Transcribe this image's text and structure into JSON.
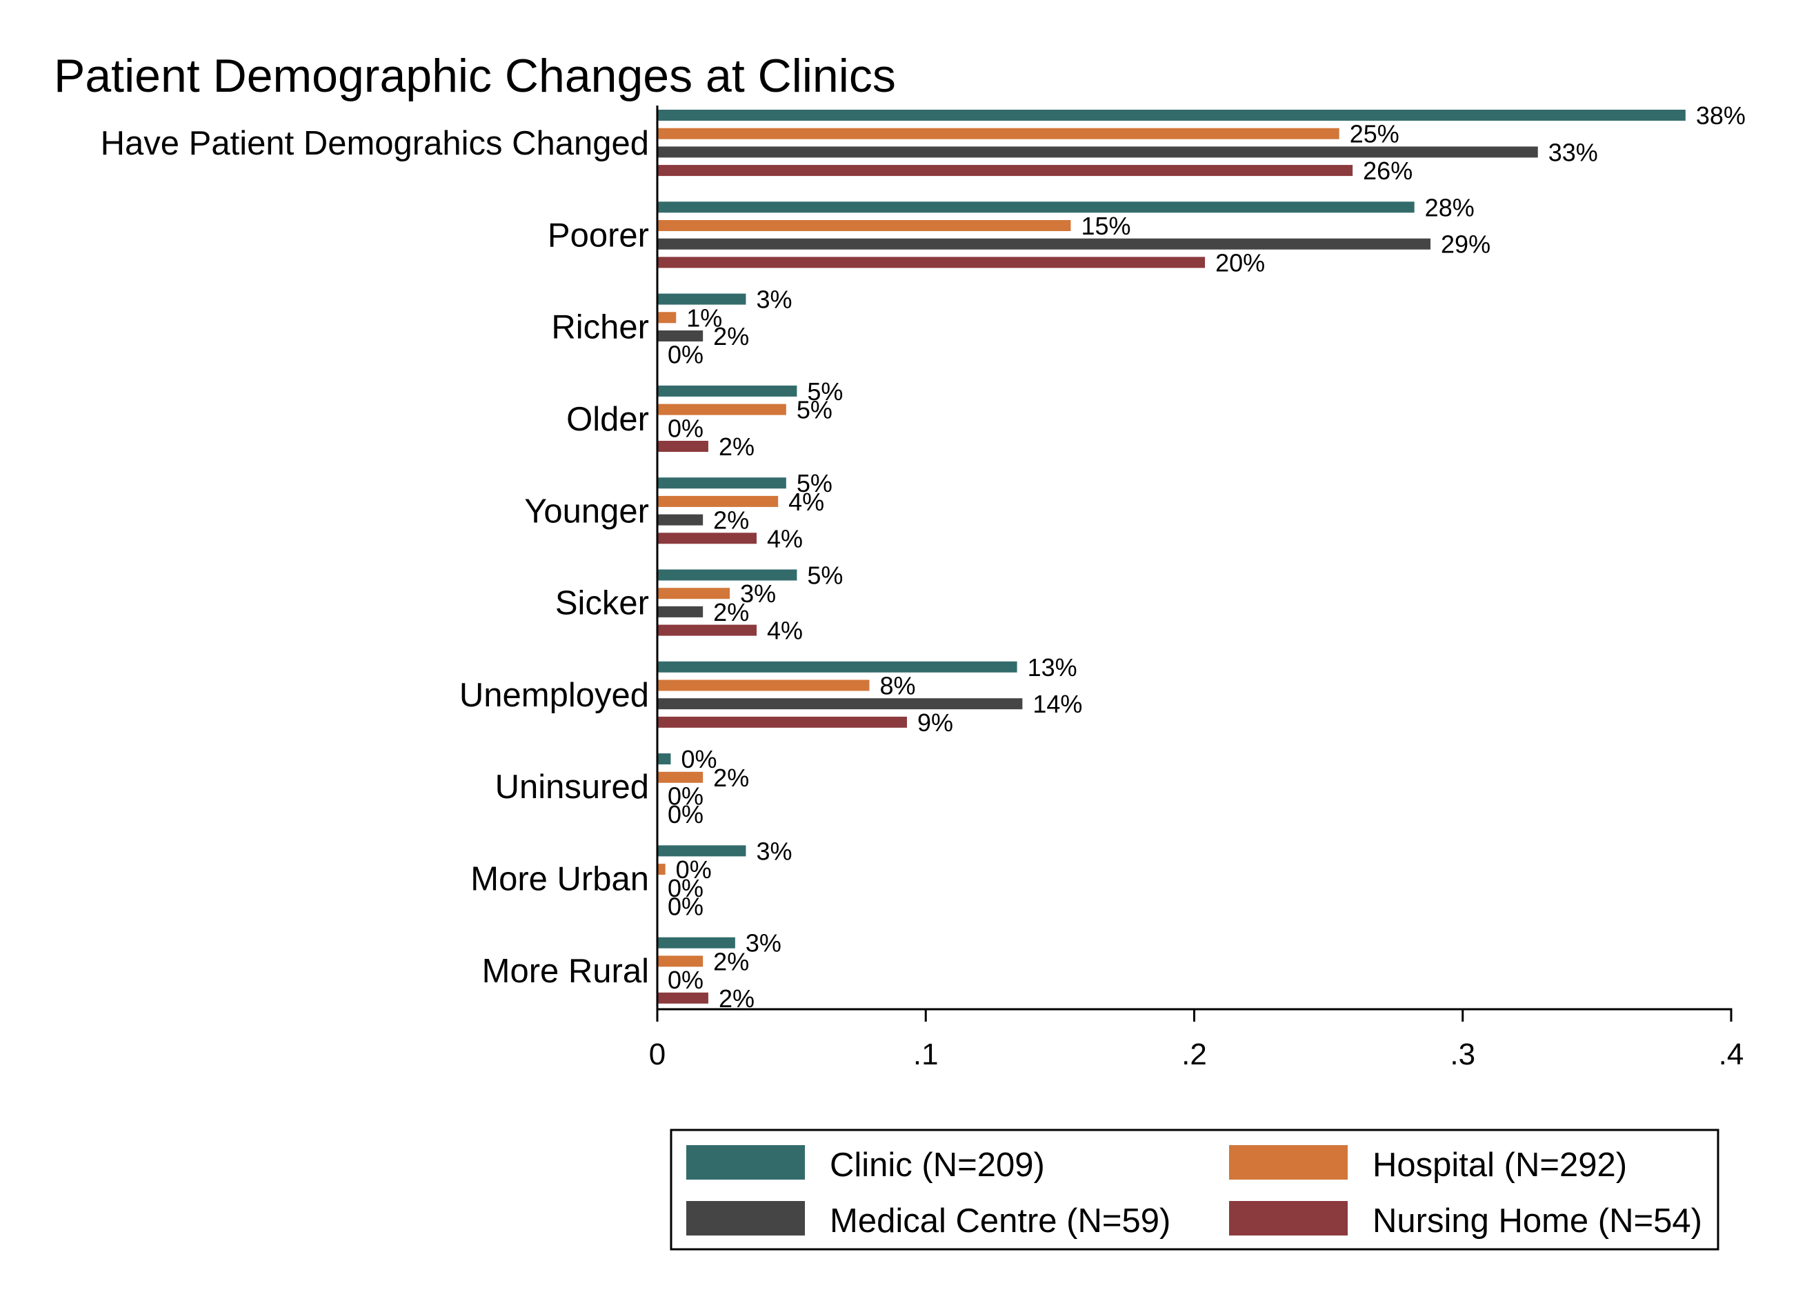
{
  "chart_data": {
    "type": "bar",
    "orientation": "horizontal",
    "title": "Patient Demographic Changes at Clinics",
    "xlabel": "",
    "ylabel": "",
    "xlim": [
      0,
      0.4
    ],
    "x_ticks": [
      0,
      0.1,
      0.2,
      0.3,
      0.4
    ],
    "x_tick_labels": [
      "0",
      ".1",
      ".2",
      ".3",
      ".4"
    ],
    "grid": false,
    "legend_position": "bottom",
    "categories": [
      "Have Patient Demograhics Changed",
      "Poorer",
      "Richer",
      "Older",
      "Younger",
      "Sicker",
      "Unemployed",
      "Uninsured",
      "More Urban",
      "More Rural"
    ],
    "series": [
      {
        "name": "Clinic (N=209)",
        "color": "#336b6b",
        "values": [
          0.383,
          0.282,
          0.033,
          0.052,
          0.048,
          0.052,
          0.134,
          0.005,
          0.033,
          0.029
        ],
        "labels": [
          "38%",
          "28%",
          "3%",
          "5%",
          "5%",
          "5%",
          "13%",
          "0%",
          "3%",
          "3%"
        ]
      },
      {
        "name": "Hospital (N=292)",
        "color": "#d2763a",
        "values": [
          0.254,
          0.154,
          0.007,
          0.048,
          0.045,
          0.027,
          0.079,
          0.017,
          0.003,
          0.017
        ],
        "labels": [
          "25%",
          "15%",
          "1%",
          "5%",
          "4%",
          "3%",
          "8%",
          "2%",
          "0%",
          "2%"
        ]
      },
      {
        "name": "Medical Centre (N=59)",
        "color": "#454545",
        "values": [
          0.328,
          0.288,
          0.017,
          0.0,
          0.017,
          0.017,
          0.136,
          0.0,
          0.0,
          0.0
        ],
        "labels": [
          "33%",
          "29%",
          "2%",
          "0%",
          "2%",
          "2%",
          "14%",
          "0%",
          "0%",
          "0%"
        ]
      },
      {
        "name": "Nursing Home (N=54)",
        "color": "#8b3a3e",
        "values": [
          0.259,
          0.204,
          0.0,
          0.019,
          0.037,
          0.037,
          0.093,
          0.0,
          0.0,
          0.019
        ],
        "labels": [
          "26%",
          "20%",
          "0%",
          "2%",
          "4%",
          "4%",
          "9%",
          "0%",
          "0%",
          "2%"
        ]
      }
    ]
  }
}
